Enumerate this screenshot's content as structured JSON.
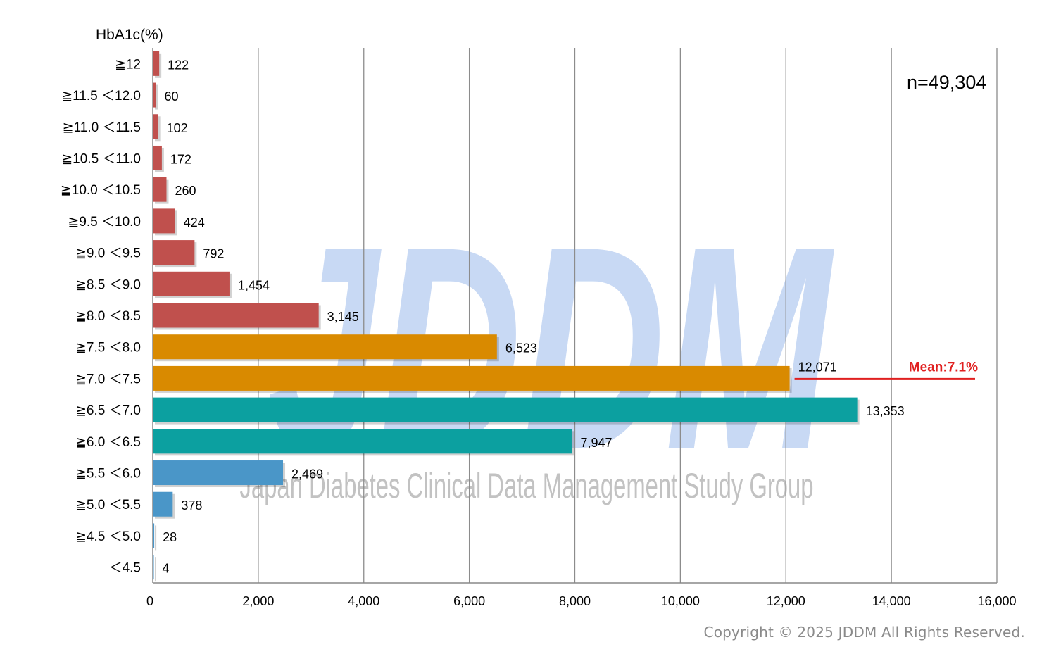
{
  "chart_data": {
    "type": "bar",
    "orientation": "horizontal",
    "title": "",
    "ylabel": "HbA1c(%)",
    "xlabel": "",
    "annotation": "n=49,304",
    "mean_label": "Mean:7.1%",
    "xlim": [
      0,
      16000
    ],
    "x_ticks": [
      "0",
      "2,000",
      "4,000",
      "6,000",
      "8,000",
      "10,000",
      "12,000",
      "14,000",
      "16,000"
    ],
    "x_tick_values": [
      0,
      2000,
      4000,
      6000,
      8000,
      10000,
      12000,
      14000,
      16000
    ],
    "grid": "vertical",
    "categories": [
      "≧12",
      "≧11.5 ＜12.0",
      "≧11.0 ＜11.5",
      "≧10.5 ＜11.0",
      "≧10.0 ＜10.5",
      "≧9.5 ＜10.0",
      "≧9.0 ＜9.5",
      "≧8.5 ＜9.0",
      "≧8.0 ＜8.5",
      "≧7.5 ＜8.0",
      "≧7.0 ＜7.5",
      "≧6.5 ＜7.0",
      "≧6.0 ＜6.5",
      "≧5.5 ＜6.0",
      "≧5.0 ＜5.5",
      "≧4.5 ＜5.0",
      "＜4.5"
    ],
    "values": [
      122,
      60,
      102,
      172,
      260,
      424,
      792,
      1454,
      3145,
      6523,
      12071,
      13353,
      7947,
      2469,
      378,
      28,
      4
    ],
    "value_labels": [
      "122",
      "60",
      "102",
      "172",
      "260",
      "424",
      "792",
      "1,454",
      "3,145",
      "6,523",
      "12,071",
      "13,353",
      "7,947",
      "2,469",
      "378",
      "28",
      "4"
    ],
    "bar_colors": [
      "#c0504d",
      "#c0504d",
      "#c0504d",
      "#c0504d",
      "#c0504d",
      "#c0504d",
      "#c0504d",
      "#c0504d",
      "#c0504d",
      "#d98a00",
      "#d98a00",
      "#0ca0a0",
      "#0ca0a0",
      "#4a96c8",
      "#4a96c8",
      "#4a96c8",
      "#4a96c8"
    ],
    "mean_line_color": "#e02020"
  },
  "watermark": {
    "logo": "JDDM",
    "subtitle": "Japan Diabetes Clinical Data Management Study Group",
    "color": "#c8d9f4"
  },
  "footer": {
    "copyright": "Copyright © 2025 JDDM All Rights Reserved."
  }
}
